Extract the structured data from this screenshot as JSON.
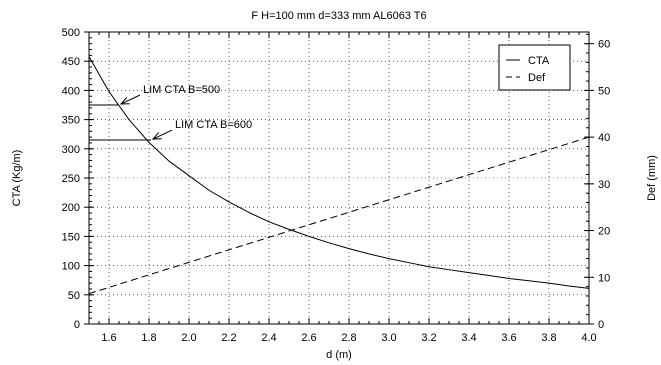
{
  "chart_data": {
    "type": "line",
    "title": "F H=100 mm d=333 mm AL6063 T6",
    "xlabel": "d (m)",
    "ylabel_left": "CTA (Kg/m)",
    "ylabel_right": "Def (mm)",
    "xlim": [
      1.5,
      4.0
    ],
    "ylim_left": [
      0,
      500
    ],
    "ylim_right": [
      0,
      62.5
    ],
    "x_ticks": [
      1.6,
      1.8,
      2.0,
      2.2,
      2.4,
      2.6,
      2.8,
      3.0,
      3.2,
      3.4,
      3.6,
      3.8,
      4.0
    ],
    "x_tick_labels": [
      "1.6",
      "1.8",
      "2.0",
      "2.2",
      "2.4",
      "2.6",
      "2.8",
      "3.0",
      "3.2",
      "3.4",
      "3.6",
      "3.8",
      "4.0"
    ],
    "y_left_ticks": [
      0,
      50,
      100,
      150,
      200,
      250,
      300,
      350,
      400,
      450,
      500
    ],
    "y_left_tick_labels": [
      "0",
      "50",
      "100",
      "150",
      "200",
      "250",
      "300",
      "350",
      "400",
      "450",
      "500"
    ],
    "y_right_ticks": [
      0,
      10,
      20,
      30,
      40,
      50,
      60
    ],
    "y_right_tick_labels": [
      "0",
      "10",
      "20",
      "30",
      "40",
      "50",
      "60"
    ],
    "grid": true,
    "legend": {
      "placement": "top-right",
      "entries": [
        "CTA",
        "Def"
      ]
    },
    "series": [
      {
        "name": "CTA",
        "axis": "left",
        "style": "solid",
        "x": [
          1.5,
          1.6,
          1.7,
          1.8,
          1.9,
          2.0,
          2.1,
          2.2,
          2.3,
          2.4,
          2.5,
          2.6,
          2.7,
          2.8,
          2.9,
          3.0,
          3.1,
          3.2,
          3.3,
          3.4,
          3.5,
          3.6,
          3.7,
          3.8,
          3.9,
          4.0
        ],
        "y": [
          458,
          398,
          350,
          311,
          279,
          254,
          229,
          209,
          191,
          175,
          162,
          150,
          139,
          129,
          120,
          112,
          105,
          98,
          93,
          88,
          83,
          78,
          74,
          70,
          65,
          61
        ]
      },
      {
        "name": "Def",
        "axis": "right",
        "style": "dashed",
        "x": [
          1.5,
          4.0
        ],
        "y": [
          6.5,
          40
        ]
      }
    ],
    "annotations": [
      {
        "text": "LIM CTA B=500",
        "x": 1.65,
        "y": 375
      },
      {
        "text": "LIM CTA B=600",
        "x": 1.81,
        "y": 315
      }
    ]
  }
}
